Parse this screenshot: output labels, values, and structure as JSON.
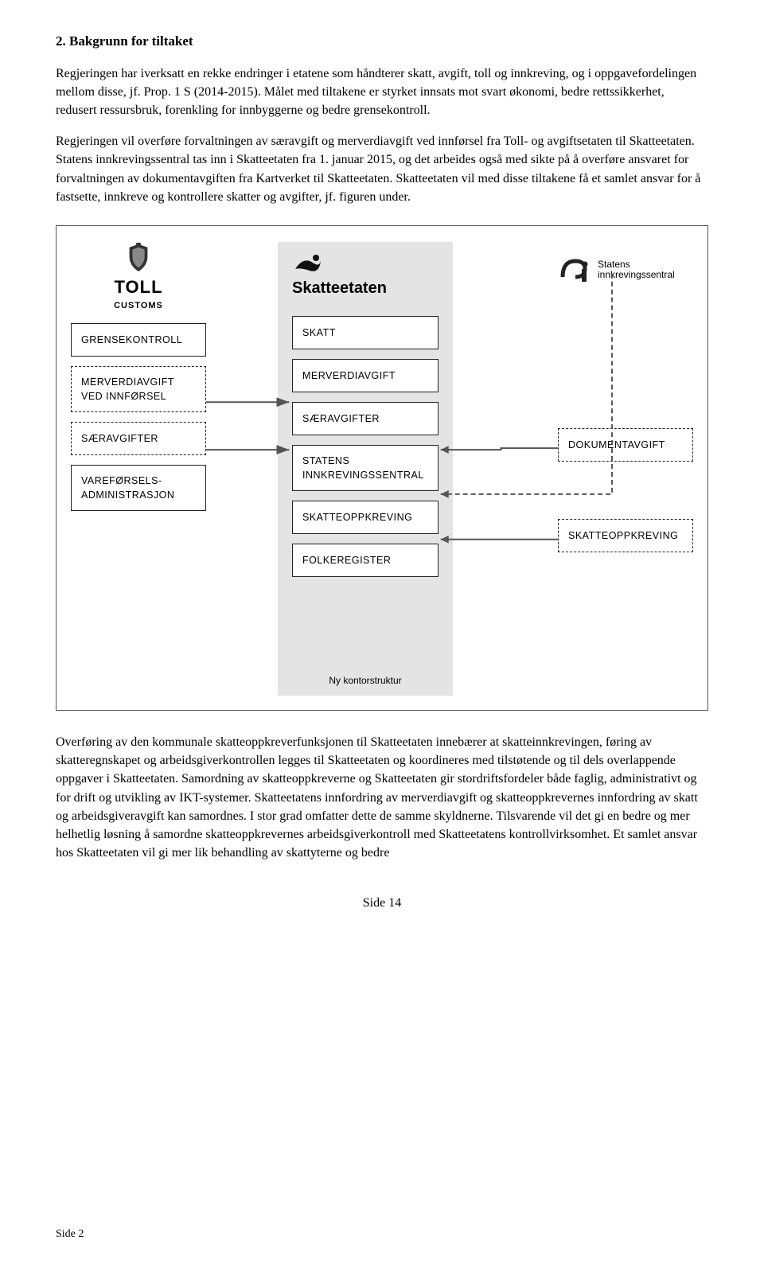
{
  "heading": "2. Bakgrunn for tiltaket",
  "para1": "Regjeringen har iverksatt en rekke endringer i etatene som håndterer skatt, avgift, toll og innkreving, og i oppgavefordelingen mellom disse, jf. Prop. 1 S (2014-2015). Målet med tiltakene er styrket innsats mot svart økonomi, bedre rettssikkerhet, redusert ressursbruk, forenkling for innbyggerne og bedre grensekontroll.",
  "para2": "Regjeringen vil overføre forvaltningen av særavgift og merverdiavgift ved innførsel fra Toll- og avgiftsetaten til Skatteetaten. Statens innkrevingssentral tas inn i Skatteetaten fra 1. januar 2015, og det arbeides også med sikte på å overføre ansvaret for forvaltningen av dokumentavgiften fra Kartverket til Skatteetaten. Skatteetaten vil med disse tiltakene få et samlet ansvar for å fastsette, innkreve og kontrollere skatter og avgifter, jf. figuren under.",
  "diagram": {
    "toll": {
      "line1": "TOLL",
      "line2": "CUSTOMS"
    },
    "left_boxes": [
      {
        "label": "GRENSEKONTROLL",
        "dashed": false
      },
      {
        "label": "MERVERDIAVGIFT VED INNFØRSEL",
        "dashed": true
      },
      {
        "label": "SÆRAVGIFTER",
        "dashed": true
      },
      {
        "label": "VAREFØRSELS-\nADMINISTRASJON",
        "dashed": false
      }
    ],
    "mid_title": "Skatteetaten",
    "mid_boxes": [
      "SKATT",
      "MERVERDIAVGIFT",
      "SÆRAVGIFTER",
      "STATENS INNKREVINGSSENTRAL",
      "SKATTEOPPKREVING",
      "FOLKEREGISTER"
    ],
    "mid_footer": "Ny kontorstruktur",
    "si_text": "Statens\ninnkrevingssentral",
    "right_boxes": [
      {
        "label": "DOKUMENTAVGIFT",
        "dashed": true
      },
      {
        "label": "SKATTEOPPKREVING",
        "dashed": true
      }
    ],
    "colors": {
      "panel_bg": "#e4e4e4",
      "border": "#222222",
      "arrow": "#555555"
    }
  },
  "para3": "Overføring av den kommunale skatteoppkreverfunksjonen til Skatteetaten innebærer at skatteinnkrevingen, føring av skatteregnskapet og arbeidsgiverkontrollen legges til Skatteetaten og koordineres med tilstøtende og til dels overlappende oppgaver i Skatteetaten. Samordning av skatteoppkreverne og Skatteetaten gir stordriftsfordeler både faglig, administrativt og for drift og utvikling av IKT-systemer. Skatteetatens innfordring av merverdiavgift og skatteoppkrevernes innfordring av skatt og arbeidsgiveravgift kan samordnes. I stor grad omfatter dette de samme skyldnerne. Tilsvarende vil det gi en bedre og mer helhetlig løsning å samordne skatteoppkrevernes arbeidsgiverkontroll med Skatteetatens kontrollvirksomhet. Et samlet ansvar hos Skatteetaten vil gi mer lik behandling av skattyterne og bedre",
  "footer_left": "Side 2",
  "footer_center": "Side 14"
}
